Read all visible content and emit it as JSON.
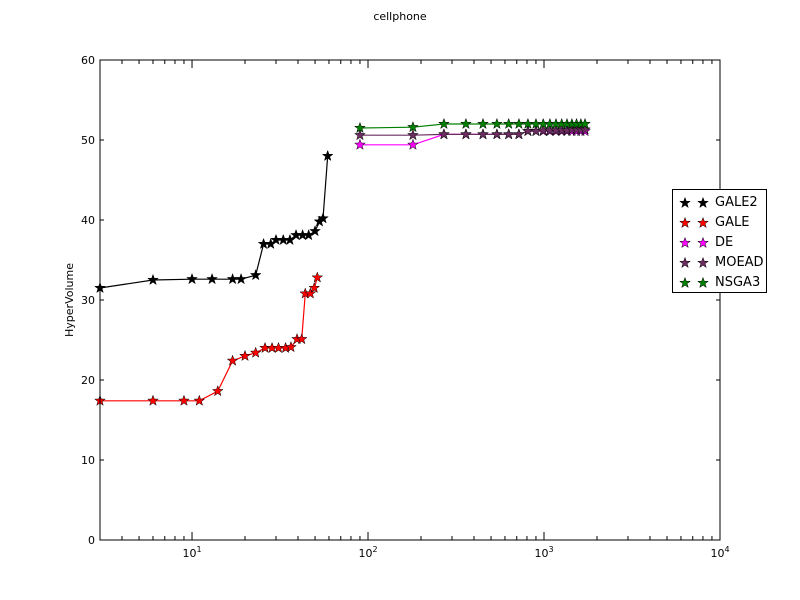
{
  "chart_data": {
    "type": "line",
    "title": "cellphone",
    "xlabel": "",
    "ylabel": "HyperVolume",
    "xscale": "log",
    "xlim": [
      3,
      10000
    ],
    "ylim": [
      0,
      60
    ],
    "yticks": [
      "0",
      "10",
      "20",
      "30",
      "40",
      "50",
      "60"
    ],
    "xticks": [
      {
        "value": 10,
        "base": "10",
        "exp": "1"
      },
      {
        "value": 100,
        "base": "10",
        "exp": "2"
      },
      {
        "value": 1000,
        "base": "10",
        "exp": "3"
      },
      {
        "value": 10000,
        "base": "10",
        "exp": "4"
      }
    ],
    "grid": false,
    "legend_position": "right",
    "series": [
      {
        "name": "GALE2",
        "color": "#000000",
        "x": [
          3,
          6,
          10,
          13,
          17,
          19,
          23,
          25.5,
          28,
          30,
          33,
          36,
          39,
          42.5,
          46,
          50,
          53,
          55.5,
          59
        ],
        "y": [
          31.5,
          32.5,
          32.6,
          32.6,
          32.6,
          32.6,
          33.1,
          37.0,
          37.0,
          37.5,
          37.5,
          37.5,
          38.1,
          38.1,
          38.1,
          38.6,
          39.8,
          40.2,
          48.0
        ]
      },
      {
        "name": "GALE",
        "color": "#ff0000",
        "x": [
          3,
          6,
          9,
          11,
          14,
          17,
          20,
          23,
          26,
          28.5,
          31,
          34,
          36.5,
          39.5,
          42,
          44,
          47,
          49.5,
          51.5
        ],
        "y": [
          17.4,
          17.4,
          17.4,
          17.4,
          18.6,
          22.4,
          23.0,
          23.4,
          24.0,
          24.0,
          24.0,
          24.0,
          24.1,
          25.1,
          25.1,
          30.8,
          30.8,
          31.5,
          32.8
        ]
      },
      {
        "name": "DE",
        "color": "#ff00ff",
        "x": [
          90,
          180,
          270,
          360,
          450,
          540,
          630,
          720,
          810,
          900,
          990,
          1080,
          1170,
          1260,
          1350,
          1440,
          1530,
          1620,
          1710
        ],
        "y": [
          49.4,
          49.4,
          50.7,
          50.7,
          50.7,
          50.7,
          50.7,
          50.7,
          51.1,
          51.1,
          51.1,
          51.1,
          51.1,
          51.1,
          51.1,
          51.1,
          51.1,
          51.1,
          51.1
        ]
      },
      {
        "name": "MOEAD",
        "color": "#6b2c5f",
        "x": [
          90,
          180,
          270,
          360,
          450,
          540,
          630,
          720,
          810,
          900,
          990,
          1080,
          1170,
          1260,
          1350,
          1440,
          1530,
          1620,
          1710
        ],
        "y": [
          50.6,
          50.6,
          50.7,
          50.7,
          50.7,
          50.7,
          50.7,
          50.7,
          51.1,
          51.1,
          51.2,
          51.2,
          51.2,
          51.2,
          51.2,
          51.3,
          51.3,
          51.3,
          51.3
        ]
      },
      {
        "name": "NSGA3",
        "color": "#008000",
        "x": [
          90,
          180,
          270,
          360,
          450,
          540,
          630,
          720,
          810,
          900,
          990,
          1080,
          1170,
          1260,
          1350,
          1440,
          1530,
          1620,
          1710
        ],
        "y": [
          51.5,
          51.6,
          52.0,
          52.0,
          52.0,
          52.0,
          52.0,
          52.0,
          52.0,
          52.0,
          52.0,
          52.0,
          52.0,
          52.0,
          52.0,
          52.0,
          52.0,
          52.0,
          52.0
        ]
      }
    ]
  }
}
